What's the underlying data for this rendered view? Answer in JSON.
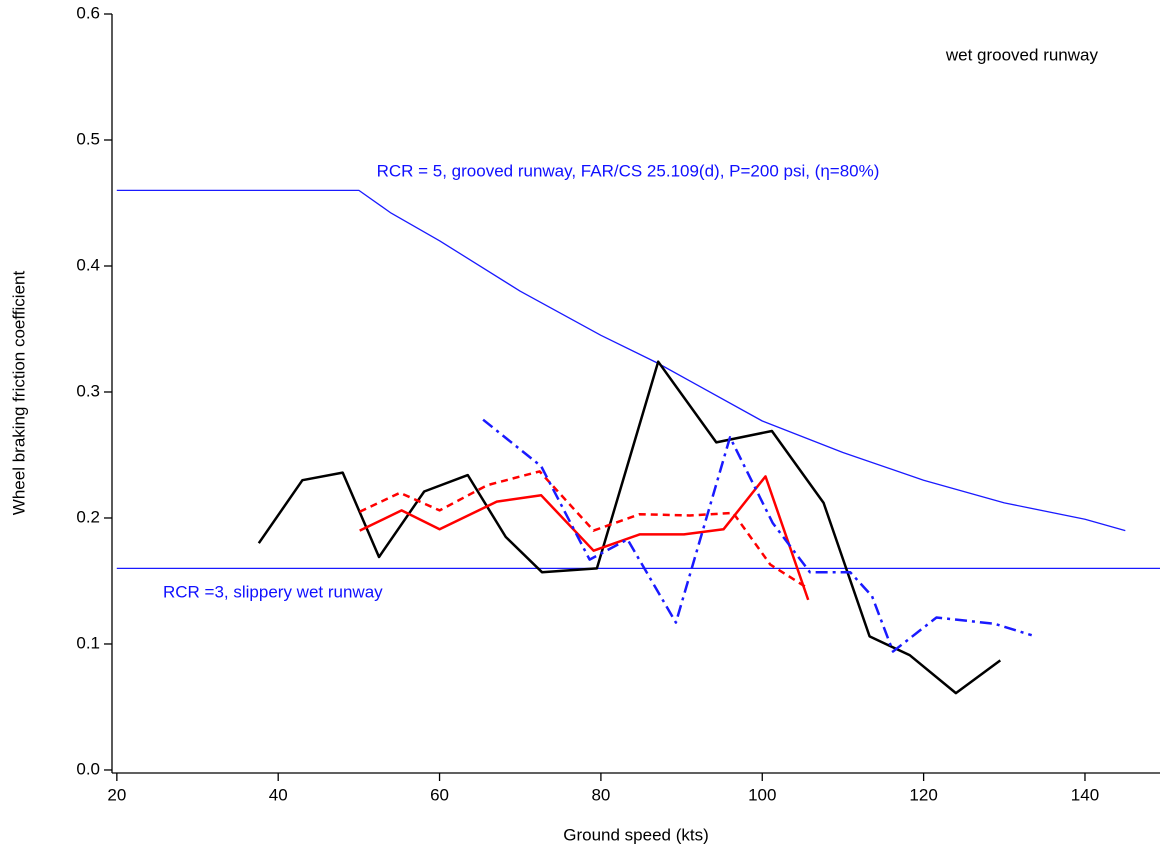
{
  "chart_data": {
    "type": "line",
    "x_label": "Ground speed (kts)",
    "y_label": "Wheel braking friction coefficient",
    "xlim": [
      19.4,
      149.3
    ],
    "ylim": [
      -0.0024,
      0.6
    ],
    "xticks": [
      20,
      40,
      60,
      80,
      100,
      120,
      140
    ],
    "yticks": [
      {
        "value": 0,
        "label": "0.0"
      },
      0.1,
      0.2,
      0.3,
      0.4,
      0.5,
      0.6
    ],
    "grid": false,
    "annotations": [
      {
        "text": "wet grooved runway",
        "color": "#000000"
      },
      {
        "text": "RCR = 5, grooved runway, FAR/CS 25.109(d), P=200 psi, (η=80%)",
        "color": "#1010ff"
      },
      {
        "text": "RCR =3, slippery wet runway",
        "color": "#1010ff"
      }
    ],
    "series": [
      {
        "color": "#1a1aff",
        "width": 1.3,
        "dash": "solid",
        "x": [
          20,
          50,
          54,
          60,
          70,
          80,
          87,
          100,
          110,
          120,
          130,
          140,
          145
        ],
        "values": [
          0.46,
          0.46,
          0.442,
          0.42,
          0.38,
          0.345,
          0.323,
          0.277,
          0.252,
          0.23,
          0.212,
          0.199,
          0.19
        ]
      },
      {
        "color": "#1a1aff",
        "width": 1.3,
        "dash": "solid",
        "x": [
          20,
          149.3
        ],
        "values": [
          0.16,
          0.16
        ]
      },
      {
        "color": "#000000",
        "width": 2.5,
        "dash": "solid",
        "x": [
          37.6,
          43.0,
          48.0,
          52.5,
          58.1,
          63.5,
          68.2,
          72.7,
          79.5,
          87.1,
          94.3,
          101.2,
          107.6,
          113.3,
          118.3,
          124.0,
          129.5
        ],
        "values": [
          0.18,
          0.23,
          0.236,
          0.169,
          0.221,
          0.234,
          0.185,
          0.157,
          0.16,
          0.324,
          0.26,
          0.269,
          0.212,
          0.106,
          0.091,
          0.061,
          0.087
        ]
      },
      {
        "color": "#ff0000",
        "width": 2.5,
        "dash": "solid",
        "x": [
          50.1,
          55.3,
          60.0,
          67.1,
          72.6,
          79.1,
          84.8,
          90.3,
          95.2,
          100.4,
          105.7
        ],
        "values": [
          0.19,
          0.206,
          0.191,
          0.213,
          0.218,
          0.174,
          0.187,
          0.187,
          0.191,
          0.233,
          0.135
        ]
      },
      {
        "color": "#ff0000",
        "width": 2.5,
        "dash": "dash",
        "x": [
          50.1,
          55.1,
          60.0,
          65.9,
          72.4,
          79.1,
          84.8,
          91.0,
          96.4,
          101.0,
          105.7
        ],
        "values": [
          0.205,
          0.22,
          0.206,
          0.226,
          0.237,
          0.19,
          0.203,
          0.202,
          0.204,
          0.163,
          0.144
        ]
      },
      {
        "color": "#1a1aff",
        "width": 2.5,
        "dash": "dashdot",
        "x": [
          65.4,
          72.6,
          78.6,
          83.3,
          89.3,
          96.0,
          101.3,
          105.9,
          110.9,
          113.6,
          116.2,
          121.6,
          128.8,
          133.4
        ],
        "values": [
          0.278,
          0.241,
          0.167,
          0.183,
          0.117,
          0.264,
          0.196,
          0.157,
          0.157,
          0.138,
          0.094,
          0.121,
          0.116,
          0.107
        ]
      }
    ]
  }
}
